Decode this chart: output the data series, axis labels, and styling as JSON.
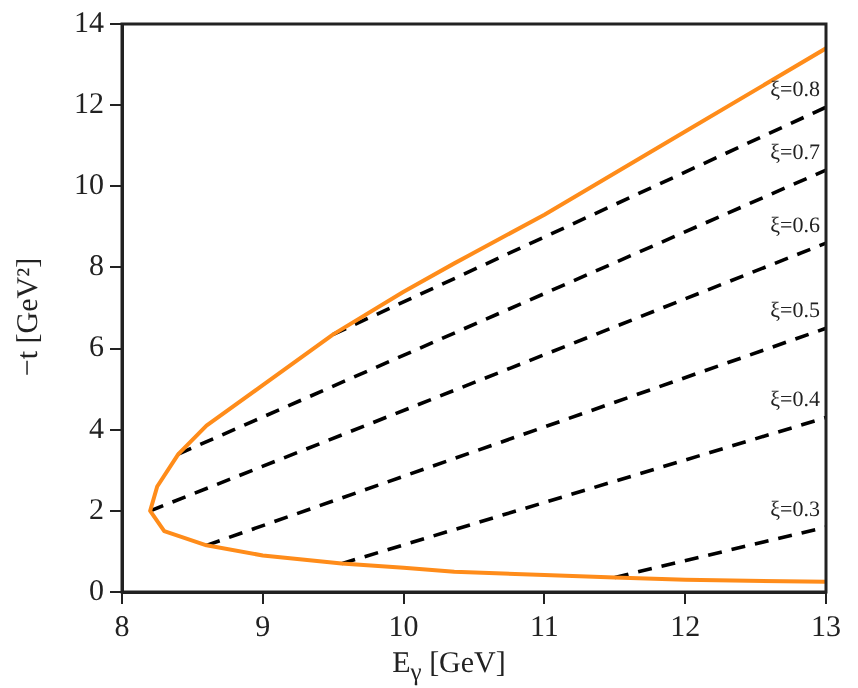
{
  "chart_data": {
    "type": "line",
    "xlabel": "E$_{γ}$ [GeV]",
    "ylabel": "−t [GeV²]",
    "xlim": [
      8,
      13
    ],
    "ylim": [
      0,
      14
    ],
    "xticks": [
      8,
      9,
      10,
      11,
      12,
      13
    ],
    "yticks": [
      0,
      2,
      4,
      6,
      8,
      10,
      12,
      14
    ],
    "grid": false,
    "legend": false,
    "marker": "none",
    "series": [
      {
        "color": "#ff8c1a",
        "line_style": "solid",
        "x": [
          13,
          12,
          11,
          10.36,
          10,
          9.5,
          9,
          8.6,
          8.4,
          8.25,
          8.2,
          8.3,
          8.6,
          9,
          9.56,
          10,
          10.36,
          11,
          11.5,
          12,
          13
        ],
        "values": [
          13.4,
          11.35,
          9.3,
          8.1,
          7.4,
          6.35,
          5.1,
          4.1,
          3.4,
          2.6,
          2,
          1.5,
          1.15,
          0.9,
          0.7,
          0.6,
          0.5,
          0.42,
          0.36,
          0.3,
          0.25
        ]
      },
      {
        "name": "ξ=0.8",
        "color": "#000000",
        "line_style": "dashed",
        "x": [
          9.5,
          13
        ],
        "values": [
          6.35,
          11.95
        ]
      },
      {
        "name": "ξ=0.7",
        "color": "#000000",
        "line_style": "dashed",
        "x": [
          8.4,
          13
        ],
        "values": [
          3.4,
          10.4
        ]
      },
      {
        "name": "ξ=0.6",
        "color": "#000000",
        "line_style": "dashed",
        "x": [
          8.2,
          13
        ],
        "values": [
          2,
          8.6
        ]
      },
      {
        "name": "ξ=0.5",
        "color": "#000000",
        "line_style": "dashed",
        "x": [
          8.6,
          13
        ],
        "values": [
          1.15,
          6.5
        ]
      },
      {
        "name": "ξ=0.4",
        "color": "#000000",
        "line_style": "dashed",
        "x": [
          9.56,
          13
        ],
        "values": [
          0.7,
          4.3
        ]
      },
      {
        "name": "ξ=0.3",
        "color": "#000000",
        "line_style": "dashed",
        "x": [
          11.5,
          13
        ],
        "values": [
          0.36,
          1.6
        ]
      }
    ]
  }
}
